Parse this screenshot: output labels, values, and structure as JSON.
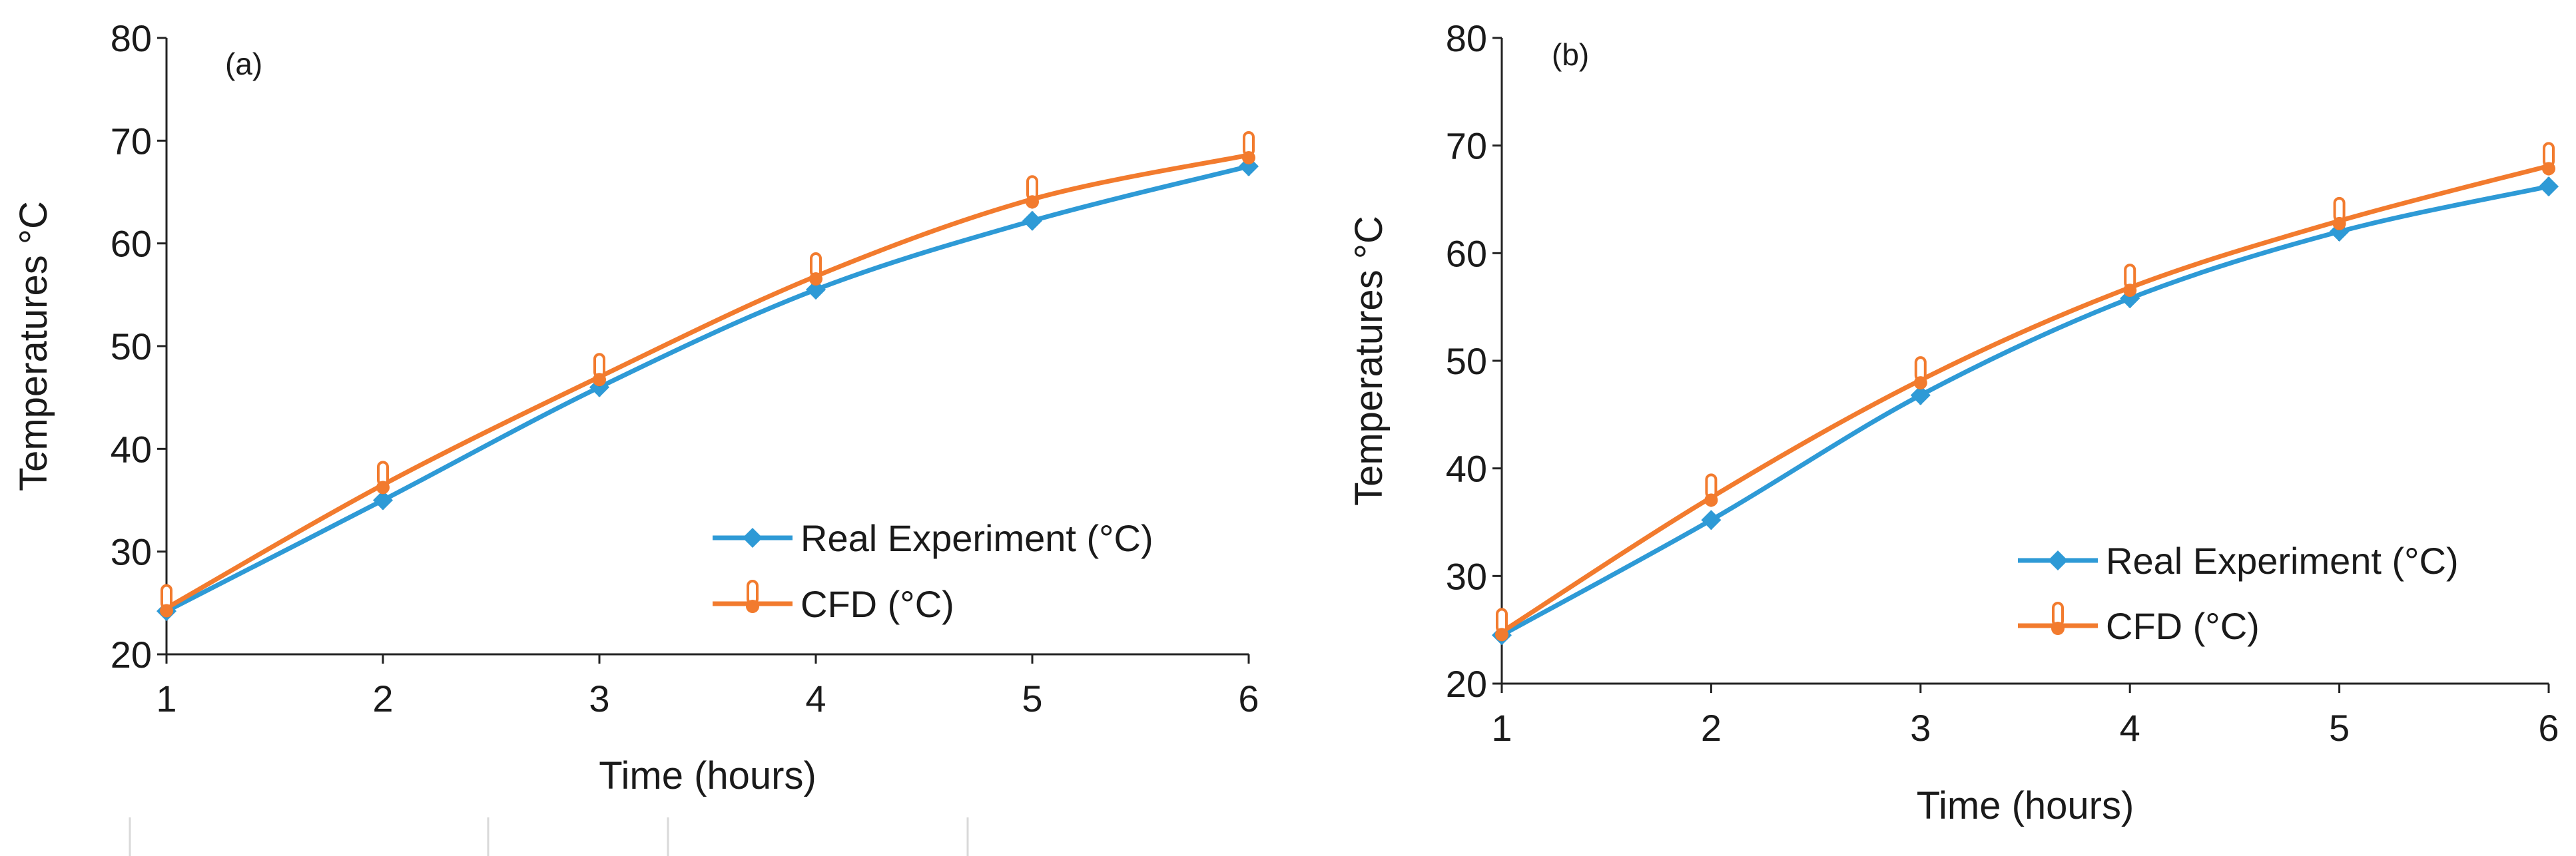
{
  "chart_data": [
    {
      "type": "line",
      "panel_label": "(a)",
      "xlabel": "Time (hours)",
      "ylabel": "Temperatures °C",
      "x": [
        1,
        2,
        3,
        4,
        5,
        6
      ],
      "xlim": [
        1,
        6
      ],
      "ylim": [
        20,
        80
      ],
      "yticks": [
        20,
        30,
        40,
        50,
        60,
        70,
        80
      ],
      "grid": false,
      "legend_position": "bottom-right",
      "series": [
        {
          "name": "Real Experiment (°C)",
          "color": "#2E9AD6",
          "marker": "diamond",
          "values": [
            24.2,
            35.0,
            46.0,
            55.5,
            62.2,
            67.5
          ]
        },
        {
          "name": "CFD (°C)",
          "color": "#F27B2E",
          "marker": "thermometer",
          "values": [
            24.5,
            36.5,
            47.0,
            56.8,
            64.3,
            68.6
          ]
        }
      ]
    },
    {
      "type": "line",
      "panel_label": "(b)",
      "xlabel": "Time (hours)",
      "ylabel": "Temperatures °C",
      "x": [
        1,
        2,
        3,
        4,
        5,
        6
      ],
      "xlim": [
        1,
        6
      ],
      "ylim": [
        20,
        80
      ],
      "yticks": [
        20,
        30,
        40,
        50,
        60,
        70,
        80
      ],
      "grid": false,
      "legend_position": "bottom-right",
      "series": [
        {
          "name": "Real Experiment (°C)",
          "color": "#2E9AD6",
          "marker": "diamond",
          "values": [
            24.5,
            35.2,
            46.8,
            55.8,
            62.0,
            66.2
          ]
        },
        {
          "name": "CFD (°C)",
          "color": "#F27B2E",
          "marker": "thermometer",
          "values": [
            24.8,
            37.3,
            48.2,
            56.8,
            63.0,
            68.1
          ]
        }
      ]
    }
  ]
}
